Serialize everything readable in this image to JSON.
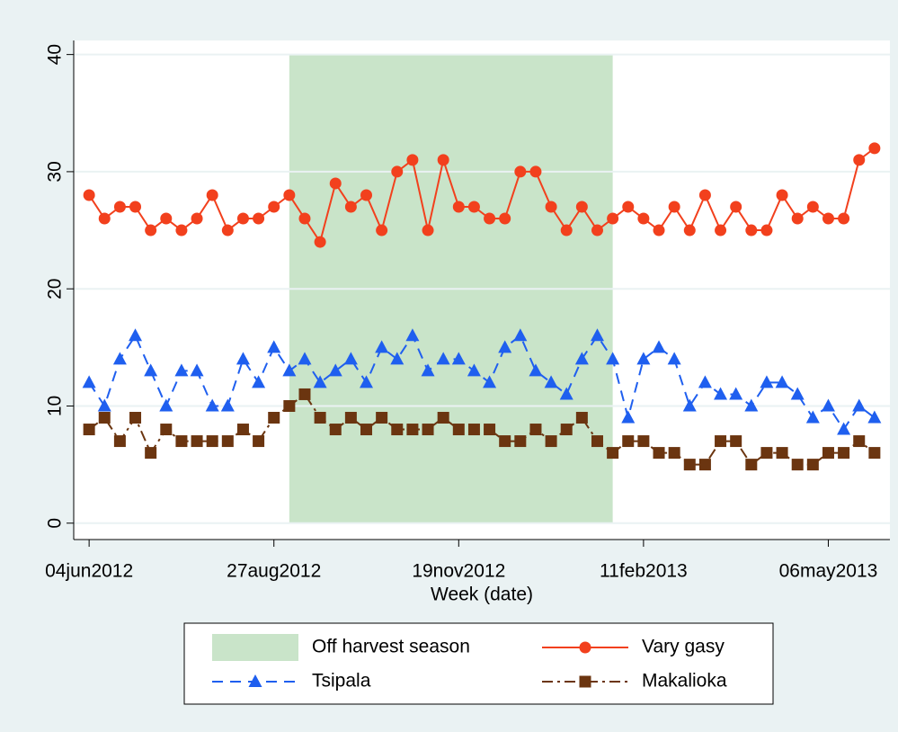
{
  "chart_data": {
    "type": "line",
    "xlabel": "Week (date)",
    "x": [
      "04jun2012",
      "11jun2012",
      "18jun2012",
      "25jun2012",
      "02jul2012",
      "09jul2012",
      "16jul2012",
      "23jul2012",
      "30jul2012",
      "06aug2012",
      "13aug2012",
      "20aug2012",
      "27aug2012",
      "03sep2012",
      "10sep2012",
      "17sep2012",
      "24sep2012",
      "01oct2012",
      "08oct2012",
      "15oct2012",
      "22oct2012",
      "29oct2012",
      "05nov2012",
      "12nov2012",
      "19nov2012",
      "26nov2012",
      "03dec2012",
      "10dec2012",
      "17dec2012",
      "24dec2012",
      "31dec2012",
      "07jan2013",
      "14jan2013",
      "21jan2013",
      "28jan2013",
      "04feb2013",
      "11feb2013",
      "18feb2013",
      "25feb2013",
      "04mar2013",
      "11mar2013",
      "18mar2013",
      "25mar2013",
      "01apr2013",
      "08apr2013",
      "15apr2013",
      "22apr2013",
      "29apr2013",
      "06may2013",
      "13may2013",
      "20may2013",
      "27may2013"
    ],
    "shade": {
      "name": "Off harvest season",
      "color": "#c9e4c9",
      "x": [
        "03sep2012",
        "28jan2013"
      ],
      "y": [
        0,
        40
      ]
    },
    "series": [
      {
        "name": "Vary gasy",
        "color": "#f2401d",
        "marker": "circle",
        "dash": "solid",
        "values": [
          28,
          26,
          27,
          27,
          25,
          26,
          25,
          26,
          28,
          25,
          26,
          26,
          27,
          28,
          26,
          24,
          29,
          27,
          28,
          25,
          30,
          31,
          25,
          31,
          27,
          27,
          26,
          26,
          30,
          30,
          27,
          25,
          27,
          25,
          26,
          27,
          26,
          25,
          27,
          25,
          28,
          25,
          27,
          25,
          25,
          28,
          26,
          27,
          26,
          26,
          31,
          32
        ]
      },
      {
        "name": "Tsipala",
        "color": "#1f5fef",
        "marker": "triangle",
        "dash": "dash",
        "values": [
          12,
          10,
          14,
          16,
          13,
          10,
          13,
          13,
          10,
          10,
          14,
          12,
          15,
          13,
          14,
          12,
          13,
          14,
          12,
          15,
          14,
          16,
          13,
          14,
          14,
          13,
          12,
          15,
          16,
          13,
          12,
          11,
          14,
          16,
          14,
          9,
          14,
          15,
          14,
          10,
          12,
          11,
          11,
          10,
          12,
          12,
          11,
          9,
          10,
          8,
          10,
          9
        ]
      },
      {
        "name": "Makalioka",
        "color": "#6b3510",
        "marker": "square",
        "dash": "dashdot",
        "values": [
          8,
          9,
          7,
          9,
          6,
          8,
          7,
          7,
          7,
          7,
          8,
          7,
          9,
          10,
          11,
          9,
          8,
          9,
          8,
          9,
          8,
          8,
          8,
          9,
          8,
          8,
          8,
          7,
          7,
          8,
          7,
          8,
          9,
          7,
          6,
          7,
          7,
          6,
          6,
          5,
          5,
          7,
          7,
          5,
          6,
          6,
          5,
          5,
          6,
          6,
          7,
          6
        ]
      }
    ],
    "xlim": [
      "28may2012",
      "03jun2013"
    ],
    "xticks": [
      "04jun2012",
      "27aug2012",
      "19nov2012",
      "11feb2013",
      "06may2013"
    ],
    "ylim": [
      -1.4,
      41.2
    ],
    "yticks": [
      0,
      10,
      20,
      30,
      40
    ],
    "grid": true
  }
}
